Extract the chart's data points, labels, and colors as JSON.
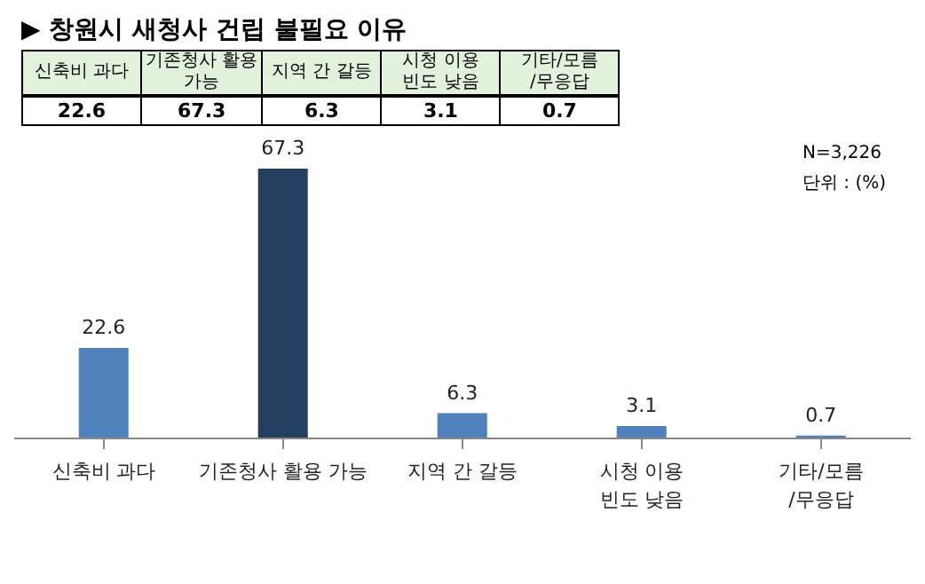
{
  "chart_data": [
    {
      "type": "other",
      "title": "▶ 창원시 새청사 건립 불필요 이유",
      "categories": [
        "신축비 과다",
        "기존청사 활용\n가능",
        "지역 간 갈등",
        "시청 이용\n빈도 낮음",
        "기타/모름\n/무응답"
      ],
      "values": [
        22.6,
        67.3,
        6.3,
        3.1,
        0.7
      ],
      "data_labels": true
    },
    {
      "type": "bar",
      "categories": [
        "신축비 과다",
        "기존청사 활용 가능",
        "지역 간 갈등",
        "시청 이용\n빈도 낮음",
        "기타/모름\n/무응답"
      ],
      "values": [
        22.6,
        67.3,
        6.3,
        3.1,
        0.7
      ],
      "colors": [
        "#4f81bd",
        "#243f60",
        "#4f81bd",
        "#4f81bd",
        "#4f81bd"
      ],
      "data_labels": true,
      "annotations": [
        "N=3,226",
        "단위 : (%)"
      ]
    }
  ]
}
